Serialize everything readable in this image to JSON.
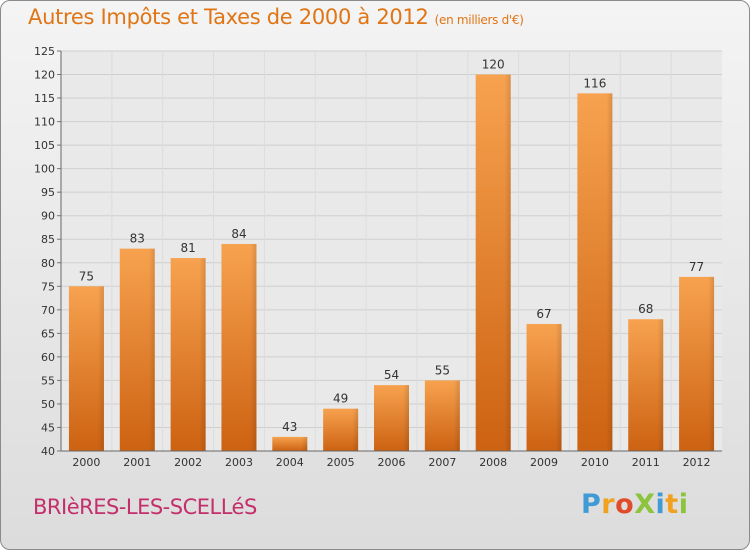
{
  "chart_data": {
    "type": "bar",
    "title": "Autres Impôts et Taxes de 2000 à 2012",
    "unit_note": "(en milliers d'€)",
    "categories": [
      "2000",
      "2001",
      "2002",
      "2003",
      "2004",
      "2005",
      "2006",
      "2007",
      "2008",
      "2009",
      "2010",
      "2011",
      "2012"
    ],
    "values": [
      75,
      83,
      81,
      84,
      43,
      49,
      54,
      55,
      120,
      67,
      116,
      68,
      77
    ],
    "ylim": [
      40,
      125
    ],
    "yticks": [
      40,
      45,
      50,
      55,
      60,
      65,
      70,
      75,
      80,
      85,
      90,
      95,
      100,
      105,
      110,
      115,
      120,
      125
    ],
    "grid": true,
    "bar_color": "#f28a2c"
  },
  "commune": "BRIèRES-LES-SCELLéS",
  "logo": {
    "text": "ProXiti",
    "letters": [
      {
        "ch": "P",
        "color": "#3f9ad6"
      },
      {
        "ch": "r",
        "color": "#f0a11e"
      },
      {
        "ch": "o",
        "color": "#e04c2a"
      },
      {
        "ch": "X",
        "color": "#8cc43d"
      },
      {
        "ch": "i",
        "color": "#3f9ad6"
      },
      {
        "ch": "t",
        "color": "#f0a11e"
      },
      {
        "ch": "i",
        "color": "#8cc43d"
      }
    ]
  }
}
